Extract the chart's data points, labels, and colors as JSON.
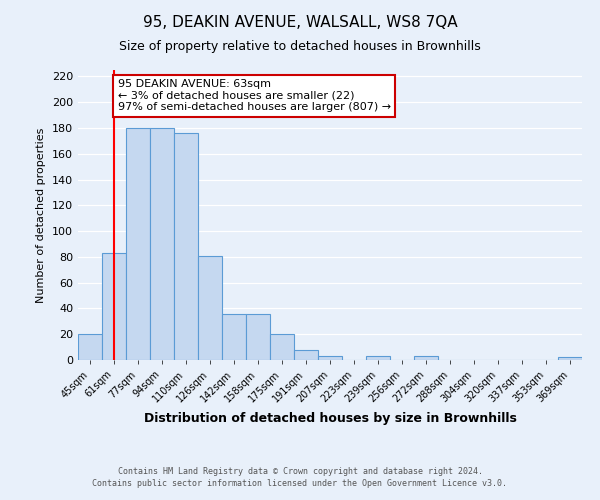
{
  "title": "95, DEAKIN AVENUE, WALSALL, WS8 7QA",
  "subtitle": "Size of property relative to detached houses in Brownhills",
  "xlabel": "Distribution of detached houses by size in Brownhills",
  "ylabel": "Number of detached properties",
  "bar_labels": [
    "45sqm",
    "61sqm",
    "77sqm",
    "94sqm",
    "110sqm",
    "126sqm",
    "142sqm",
    "158sqm",
    "175sqm",
    "191sqm",
    "207sqm",
    "223sqm",
    "239sqm",
    "256sqm",
    "272sqm",
    "288sqm",
    "304sqm",
    "320sqm",
    "337sqm",
    "353sqm",
    "369sqm"
  ],
  "bar_values": [
    20,
    83,
    180,
    180,
    176,
    81,
    36,
    36,
    20,
    8,
    3,
    0,
    3,
    0,
    3,
    0,
    0,
    0,
    0,
    0,
    2
  ],
  "bar_color": "#c5d8f0",
  "bar_edge_color": "#5b9bd5",
  "background_color": "#e8f0fa",
  "grid_color": "#ffffff",
  "red_line_x": 1.0,
  "annotation_text": "95 DEAKIN AVENUE: 63sqm\n← 3% of detached houses are smaller (22)\n97% of semi-detached houses are larger (807) →",
  "annotation_box_facecolor": "#ffffff",
  "annotation_border_color": "#cc0000",
  "ylim": [
    0,
    225
  ],
  "yticks": [
    0,
    20,
    40,
    60,
    80,
    100,
    120,
    140,
    160,
    180,
    200,
    220
  ],
  "footer_line1": "Contains HM Land Registry data © Crown copyright and database right 2024.",
  "footer_line2": "Contains public sector information licensed under the Open Government Licence v3.0."
}
